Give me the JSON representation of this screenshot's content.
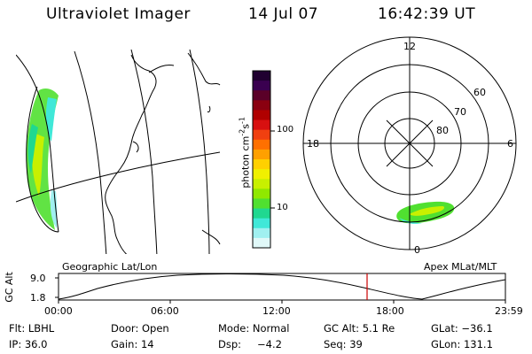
{
  "header": {
    "instrument": "Ultraviolet Imager",
    "date": "14 Jul 07",
    "time": "16:42:39 UT"
  },
  "colorbar": {
    "label": "photon cm",
    "label_sup1": "-2",
    "label_mid": "s",
    "label_sup2": "-1",
    "ticks": [
      "100",
      "10"
    ],
    "colors": [
      "#200030",
      "#3a0050",
      "#5a0028",
      "#8a0010",
      "#b00000",
      "#d81010",
      "#f04010",
      "#ff7000",
      "#ffa000",
      "#ffd000",
      "#f0f000",
      "#c8f000",
      "#90e800",
      "#50e030",
      "#20d890",
      "#40e8d8",
      "#a0f0f0",
      "#e0f8f8"
    ]
  },
  "polar": {
    "top_label": "12",
    "left_label": "18",
    "right_label": "6",
    "bottom_label": "0",
    "ring_labels": [
      "60",
      "70",
      "80"
    ]
  },
  "orbit": {
    "ylabel": "GC Alt",
    "y_ticks": [
      "9.0",
      "1.8"
    ],
    "left_caption": "Geographic Lat/Lon",
    "right_caption": "Apex MLat/MLT",
    "x_ticks": [
      "00:00",
      "06:00",
      "12:00",
      "18:00",
      "23:59"
    ],
    "colors": {
      "marker": "#cc0000"
    }
  },
  "info": {
    "row1": [
      "Flt: LBHL",
      "Door: Open",
      "Mode: Normal",
      "GC Alt: 5.1 Re",
      "GLat: −36.1"
    ],
    "row2": [
      "IP: 36.0",
      "Gain: 14",
      "Dsp:",
      "−4.2",
      "Seq: 39",
      "GLon: 131.1"
    ]
  }
}
